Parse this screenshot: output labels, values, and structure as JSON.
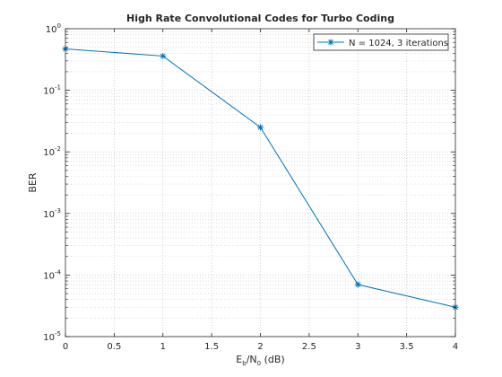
{
  "chart_data": {
    "type": "line",
    "title": "High Rate Convolutional Codes for Turbo Coding",
    "xlabel": {
      "base": "E",
      "sub1": "b",
      "mid": "/N",
      "sub2": "0",
      "rest": " (dB)"
    },
    "ylabel": "BER",
    "xlim": [
      0,
      4
    ],
    "ylim": [
      1e-05,
      1
    ],
    "yscale": "log",
    "xticks": [
      "0",
      "0.5",
      "1",
      "1.5",
      "2",
      "2.5",
      "3",
      "3.5",
      "4"
    ],
    "yticks": [
      {
        "base": "10",
        "exp": "0"
      },
      {
        "base": "10",
        "exp": "-1"
      },
      {
        "base": "10",
        "exp": "-2"
      },
      {
        "base": "10",
        "exp": "-3"
      },
      {
        "base": "10",
        "exp": "-4"
      },
      {
        "base": "10",
        "exp": "-5"
      }
    ],
    "grid": true,
    "minor_grid": true,
    "legend_position": "top-right",
    "series": [
      {
        "name": "N = 1024, 3 iterations",
        "color": "#0072BD",
        "marker": "asterisk",
        "x": [
          0,
          1,
          2,
          3,
          4
        ],
        "y": [
          0.47,
          0.36,
          0.025,
          7e-05,
          3e-05
        ]
      }
    ]
  }
}
